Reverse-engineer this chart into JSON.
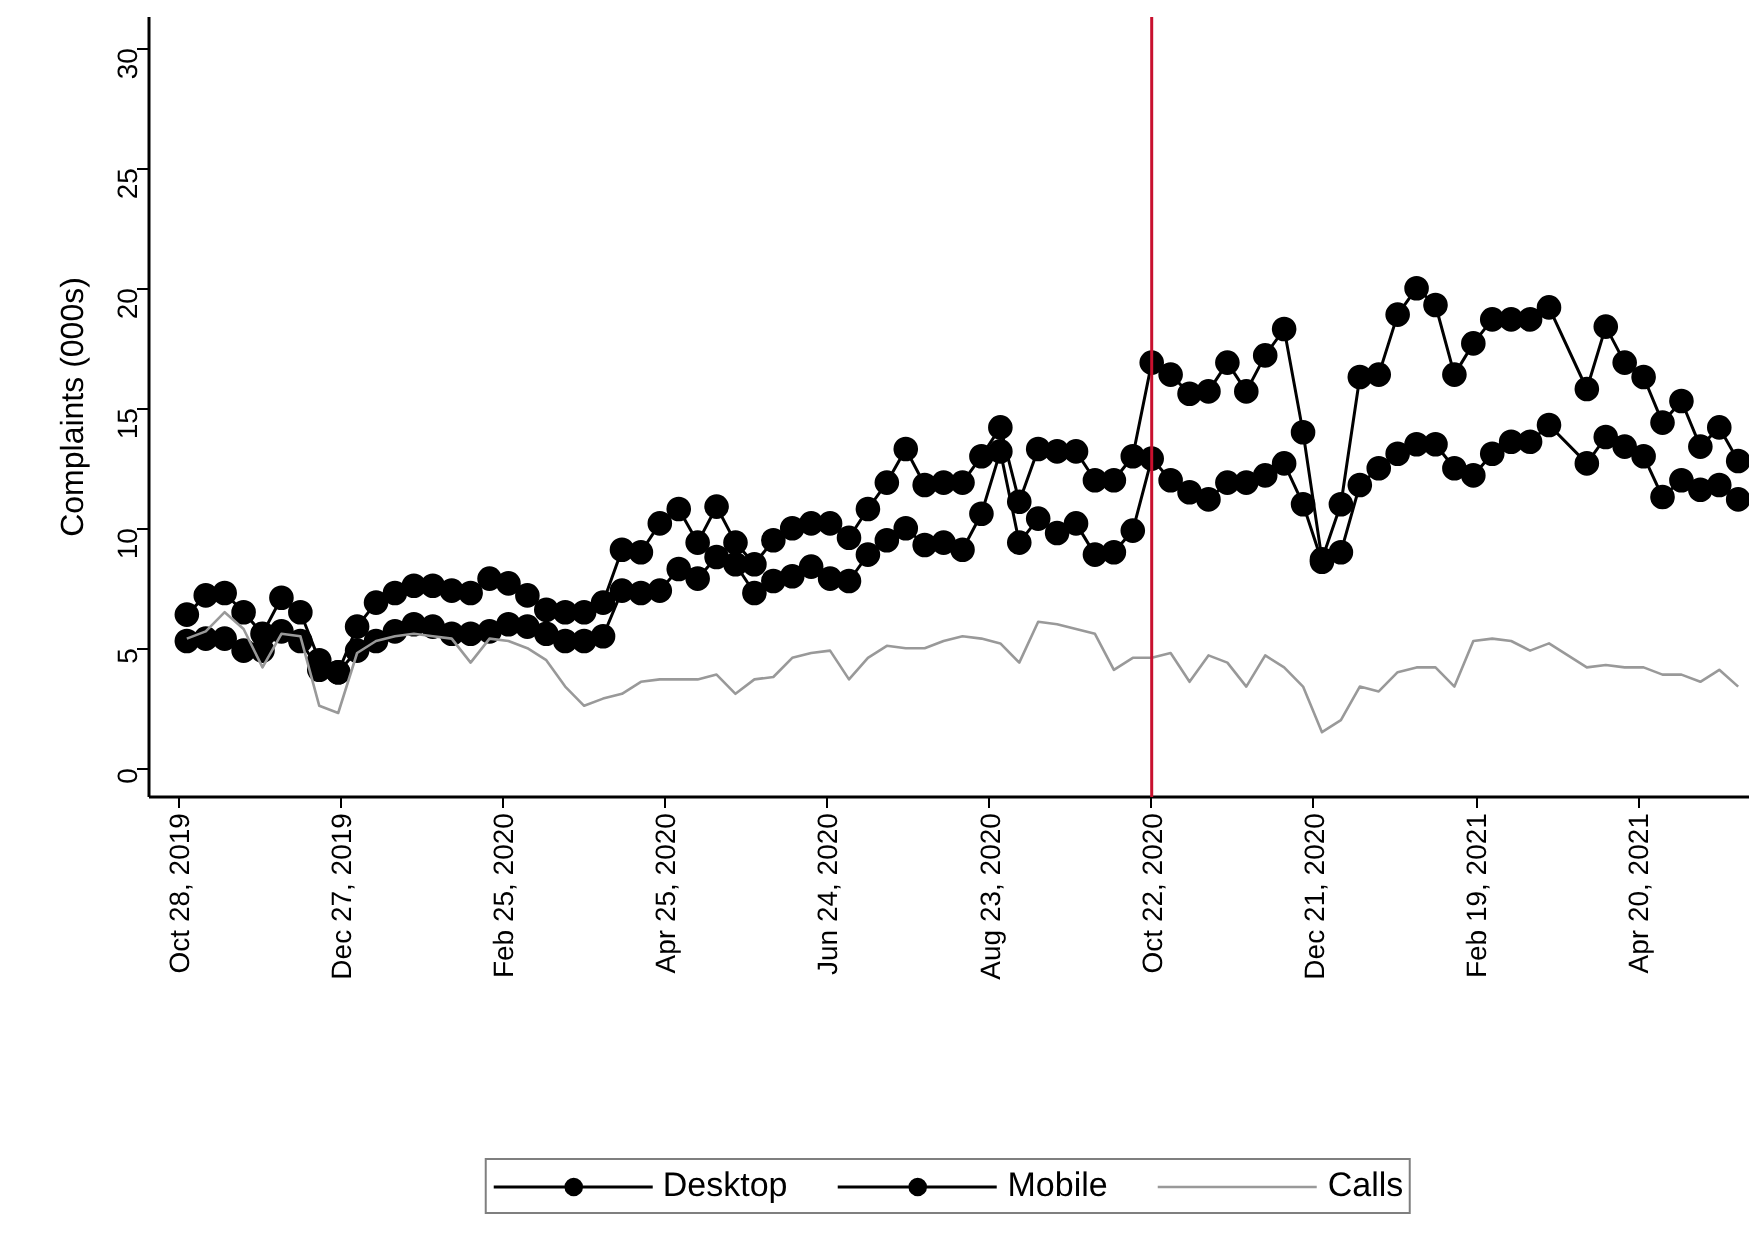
{
  "chart_data": {
    "type": "line",
    "ylabel": "Complaints (000s)",
    "x": [
      "2019-10-31",
      "2019-11-07",
      "2019-11-14",
      "2019-11-21",
      "2019-11-28",
      "2019-12-05",
      "2019-12-12",
      "2019-12-19",
      "2019-12-26",
      "2020-01-02",
      "2020-01-09",
      "2020-01-16",
      "2020-01-23",
      "2020-01-30",
      "2020-02-06",
      "2020-02-13",
      "2020-02-20",
      "2020-02-27",
      "2020-03-05",
      "2020-03-12",
      "2020-03-19",
      "2020-03-26",
      "2020-04-02",
      "2020-04-09",
      "2020-04-16",
      "2020-04-23",
      "2020-04-30",
      "2020-05-07",
      "2020-05-14",
      "2020-05-21",
      "2020-05-28",
      "2020-06-04",
      "2020-06-11",
      "2020-06-18",
      "2020-06-25",
      "2020-07-02",
      "2020-07-09",
      "2020-07-16",
      "2020-07-23",
      "2020-07-30",
      "2020-08-06",
      "2020-08-13",
      "2020-08-20",
      "2020-08-27",
      "2020-09-03",
      "2020-09-10",
      "2020-09-17",
      "2020-09-24",
      "2020-10-01",
      "2020-10-08",
      "2020-10-15",
      "2020-10-22",
      "2020-10-29",
      "2020-11-05",
      "2020-11-12",
      "2020-11-19",
      "2020-11-26",
      "2020-12-03",
      "2020-12-10",
      "2020-12-17",
      "2020-12-24",
      "2020-12-31",
      "2021-01-07",
      "2021-01-14",
      "2021-01-21",
      "2021-01-28",
      "2021-02-04",
      "2021-02-11",
      "2021-02-18",
      "2021-02-25",
      "2021-03-04",
      "2021-03-11",
      "2021-03-18",
      "2021-04-01",
      "2021-04-08",
      "2021-04-15",
      "2021-04-22",
      "2021-04-29",
      "2021-05-06",
      "2021-05-13",
      "2021-05-20",
      "2021-05-27"
    ],
    "series": [
      {
        "name": "Desktop",
        "color": "#000000",
        "marker": "circle",
        "values": [
          6.4,
          7.2,
          7.3,
          6.5,
          5.6,
          7.1,
          6.5,
          4.5,
          4.0,
          5.9,
          6.9,
          7.3,
          7.6,
          7.6,
          7.4,
          7.3,
          7.9,
          7.7,
          7.2,
          6.6,
          6.5,
          6.5,
          6.9,
          9.1,
          9.0,
          10.2,
          10.8,
          9.4,
          10.9,
          9.4,
          8.5,
          9.5,
          10.0,
          10.2,
          10.2,
          9.6,
          10.8,
          11.9,
          13.3,
          11.8,
          11.9,
          11.9,
          13.0,
          14.2,
          11.1,
          13.3,
          13.2,
          13.2,
          12.0,
          12.0,
          13.0,
          16.9,
          16.4,
          15.6,
          15.7,
          16.9,
          15.7,
          17.2,
          18.3,
          14.0,
          8.7,
          11.0,
          16.3,
          16.4,
          18.9,
          20.0,
          19.3,
          16.4,
          17.7,
          18.7,
          18.7,
          18.7,
          19.2,
          15.8,
          18.4,
          16.9,
          16.3,
          14.4,
          15.3,
          13.4,
          14.2,
          12.8
        ]
      },
      {
        "name": "Mobile",
        "color": "#000000",
        "marker": "circle",
        "values": [
          5.3,
          5.4,
          5.4,
          4.9,
          4.9,
          5.7,
          5.3,
          4.1,
          4.0,
          4.9,
          5.3,
          5.7,
          6.0,
          5.9,
          5.6,
          5.6,
          5.7,
          6.0,
          5.9,
          5.6,
          5.3,
          5.3,
          5.5,
          7.4,
          7.3,
          7.4,
          8.3,
          7.9,
          8.8,
          8.5,
          7.3,
          7.8,
          8.0,
          8.4,
          7.9,
          7.8,
          8.9,
          9.5,
          10.0,
          9.3,
          9.4,
          9.1,
          10.6,
          13.2,
          9.4,
          10.4,
          9.8,
          10.2,
          8.9,
          9.0,
          9.9,
          12.9,
          12.0,
          11.5,
          11.2,
          11.9,
          11.9,
          12.2,
          12.7,
          11.0,
          8.6,
          9.0,
          11.8,
          12.5,
          13.1,
          13.5,
          13.5,
          12.5,
          12.2,
          13.1,
          13.6,
          13.6,
          14.3,
          12.7,
          13.8,
          13.4,
          13.0,
          11.3,
          12.0,
          11.6,
          11.8,
          11.2
        ]
      },
      {
        "name": "Calls",
        "color": "#999999",
        "marker": "none",
        "values": [
          5.4,
          5.7,
          6.5,
          5.8,
          4.2,
          5.6,
          5.5,
          2.6,
          2.3,
          4.8,
          5.3,
          5.5,
          5.6,
          5.5,
          5.4,
          4.4,
          5.4,
          5.3,
          5.0,
          4.5,
          3.4,
          2.6,
          2.9,
          3.1,
          3.6,
          3.7,
          3.7,
          3.7,
          3.9,
          3.1,
          3.7,
          3.8,
          4.6,
          4.8,
          4.9,
          3.7,
          4.6,
          5.1,
          5.0,
          5.0,
          5.3,
          5.5,
          5.4,
          5.2,
          4.4,
          6.1,
          6.0,
          5.8,
          5.6,
          4.1,
          4.6,
          4.6,
          4.8,
          3.6,
          4.7,
          4.4,
          3.4,
          4.7,
          4.2,
          3.4,
          1.5,
          2.0,
          3.4,
          3.2,
          4.0,
          4.2,
          4.2,
          3.4,
          5.3,
          5.4,
          5.3,
          4.9,
          5.2,
          4.2,
          4.3,
          4.2,
          4.2,
          3.9,
          3.9,
          3.6,
          4.1,
          3.4
        ]
      }
    ],
    "xlim": [
      "2019-10-17",
      "2021-05-31"
    ],
    "xticks": [
      {
        "value": "2019-10-28",
        "label": "Oct 28, 2019"
      },
      {
        "value": "2019-12-27",
        "label": "Dec 27, 2019"
      },
      {
        "value": "2020-02-25",
        "label": "Feb 25, 2020"
      },
      {
        "value": "2020-04-25",
        "label": "Apr 25, 2020"
      },
      {
        "value": "2020-06-24",
        "label": "Jun 24, 2020"
      },
      {
        "value": "2020-08-23",
        "label": "Aug 23, 2020"
      },
      {
        "value": "2020-10-22",
        "label": "Oct 22, 2020"
      },
      {
        "value": "2020-12-21",
        "label": "Dec 21, 2020"
      },
      {
        "value": "2021-02-19",
        "label": "Feb 19, 2021"
      },
      {
        "value": "2021-04-20",
        "label": "Apr 20, 2021"
      }
    ],
    "ylim": [
      -1.2,
      31.3
    ],
    "yticks": [
      0,
      5,
      10,
      15,
      20,
      25,
      30
    ],
    "ref_lines": [
      {
        "axis": "x",
        "value": "2020-10-22",
        "color": "#c8102e"
      }
    ],
    "grid": false,
    "legend": "bottom",
    "line_style": "solid"
  }
}
